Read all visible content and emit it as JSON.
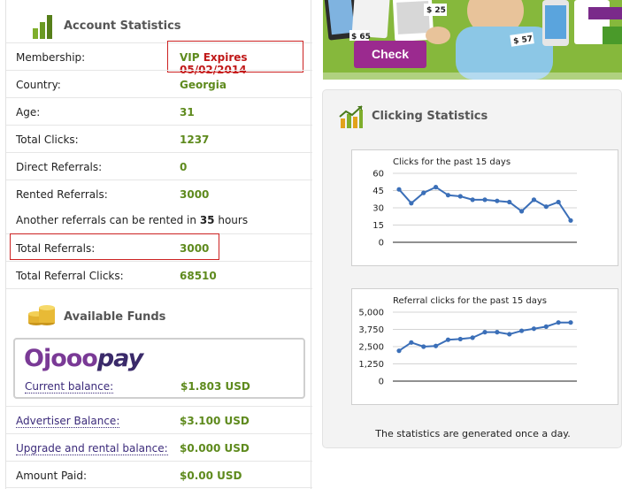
{
  "account": {
    "title": "Account Statistics",
    "membership": {
      "label": "Membership:",
      "vip": "VIP",
      "expires": "Expires 05/02/2014"
    },
    "country": {
      "label": "Country:",
      "value": "Georgia"
    },
    "age": {
      "label": "Age:",
      "value": "31"
    },
    "total_clicks": {
      "label": "Total Clicks:",
      "value": "1237"
    },
    "direct_referrals": {
      "label": "Direct Referrals:",
      "value": "0"
    },
    "rented_referrals": {
      "label": "Rented Referrals:",
      "value": "3000"
    },
    "rent_note": {
      "prefix": "Another referrals can be rented in",
      "hours": "35",
      "suffix": "hours"
    },
    "total_referrals": {
      "label": "Total Referrals:",
      "value": "3000"
    },
    "total_referral_clicks": {
      "label": "Total Referral Clicks:",
      "value": "68510"
    }
  },
  "funds": {
    "title": "Available Funds",
    "logo_part1": "Ojooo",
    "logo_part2": "pay",
    "current_balance": {
      "label": "Current balance:",
      "value": "$1.803 USD"
    },
    "advertiser_balance": {
      "label": "Advertiser Balance:",
      "value": "$3.100 USD"
    },
    "upgrade_balance": {
      "label": "Upgrade and rental balance:",
      "value": "$0.000 USD"
    },
    "amount_paid": {
      "label": "Amount Paid:",
      "value": "$0.00 USD"
    }
  },
  "banner": {
    "check_label": "Check",
    "tags": [
      "$ 65",
      "$ 25",
      "$ 57"
    ]
  },
  "clicking": {
    "title": "Clicking Statistics",
    "footnote": "The statistics are generated once a day."
  },
  "colors": {
    "accent_green": "#5e8a1d",
    "alert_red": "#c01818",
    "line_blue": "#3b6fb8",
    "check_purple": "#9b2a8f"
  },
  "chart_data": [
    {
      "type": "line",
      "title": "Clicks for the past 15 days",
      "ylim": [
        0,
        60
      ],
      "yticks": [
        0,
        15,
        30,
        45,
        60
      ],
      "ytick_labels": [
        "0",
        "15",
        "30",
        "45",
        "60"
      ],
      "series": [
        {
          "values": [
            46,
            34,
            43,
            48,
            41,
            40,
            37,
            37,
            36,
            35,
            27,
            37,
            31,
            35,
            19
          ]
        }
      ]
    },
    {
      "type": "line",
      "title": "Referral clicks for the past 15 days",
      "ylim": [
        0,
        5000
      ],
      "yticks": [
        0,
        1250,
        2500,
        3750,
        5000
      ],
      "ytick_labels": [
        "0",
        "1,250",
        "2,500",
        "3,750",
        "5,000"
      ],
      "series": [
        {
          "values": [
            2200,
            2800,
            2500,
            2550,
            3000,
            3050,
            3150,
            3550,
            3550,
            3400,
            3650,
            3800,
            3950,
            4250,
            4250
          ]
        }
      ]
    }
  ]
}
